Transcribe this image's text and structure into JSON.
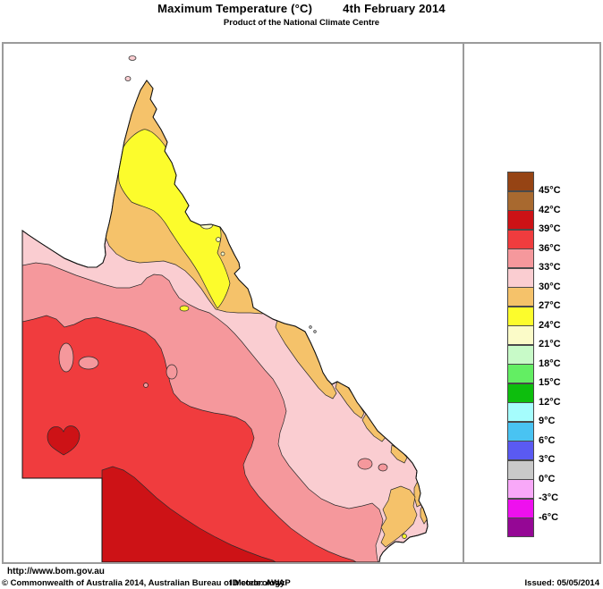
{
  "header": {
    "title": "Maximum Temperature (°C)",
    "date": "4th February 2014",
    "subtitle": "Product of the National Climate Centre"
  },
  "legend": {
    "cells": [
      {
        "color": "#964414",
        "label": "45°C"
      },
      {
        "color": "#A8692F",
        "label": "42°C"
      },
      {
        "color": "#CD1216",
        "label": "39°C"
      },
      {
        "color": "#F03C3E",
        "label": "36°C"
      },
      {
        "color": "#F5989C",
        "label": "33°C"
      },
      {
        "color": "#FACDD1",
        "label": "30°C"
      },
      {
        "color": "#F5C26A",
        "label": "27°C"
      },
      {
        "color": "#FCFC2C",
        "label": "24°C"
      },
      {
        "color": "#FBFBC8",
        "label": "21°C"
      },
      {
        "color": "#C8FAC8",
        "label": "18°C"
      },
      {
        "color": "#63EE63",
        "label": "15°C"
      },
      {
        "color": "#0DBE0D",
        "label": "12°C"
      },
      {
        "color": "#A5FDFD",
        "label": "9°C"
      },
      {
        "color": "#49C3F2",
        "label": "6°C"
      },
      {
        "color": "#5A5AF2",
        "label": "3°C"
      },
      {
        "color": "#C9C9C9",
        "label": "0°C"
      },
      {
        "color": "#F8A8F8",
        "label": "-3°C"
      },
      {
        "color": "#EE10EE",
        "label": "-6°C"
      },
      {
        "color": "#950795",
        "label": ""
      }
    ]
  },
  "map": {
    "band_colors": {
      "39-42": "#CD1216",
      "36-39": "#F03C3E",
      "33-36": "#F5989C",
      "30-33": "#FACDD1",
      "27-30": "#F5C26A",
      "24-27": "#FCFC2C",
      "21-24": "#FBFBC8"
    }
  },
  "footer": {
    "url": "http://www.bom.gov.au",
    "copyright": "© Commonwealth of Australia 2014, Australian Bureau of Meteorology",
    "id_code": "ID code: AWAP",
    "issued": "Issued: 05/05/2014"
  }
}
